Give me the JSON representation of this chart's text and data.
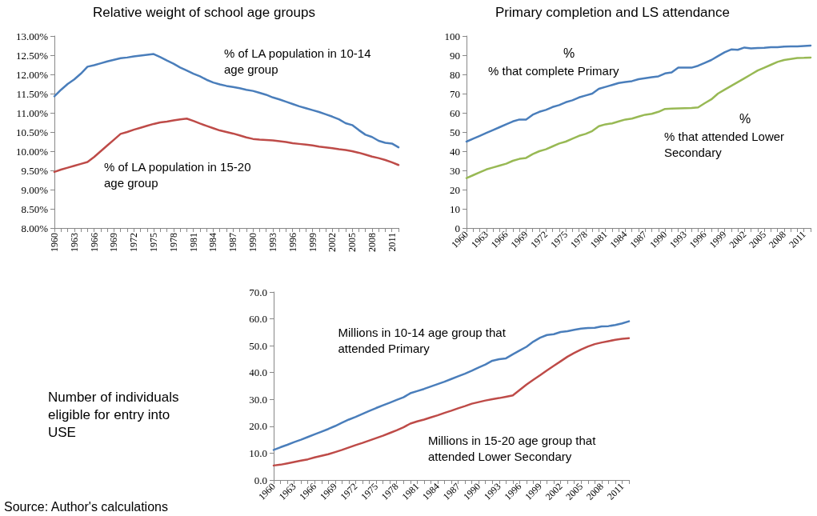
{
  "chart_data": [
    {
      "type": "line",
      "title": "Relative weight of school age groups",
      "marker": "none",
      "line_style": "solid",
      "categories": [
        "1960",
        null,
        null,
        "1963",
        null,
        null,
        "1966",
        null,
        null,
        "1969",
        null,
        null,
        "1972",
        null,
        null,
        "1975",
        null,
        null,
        "1978",
        null,
        null,
        "1981",
        null,
        null,
        "1984",
        null,
        null,
        "1987",
        null,
        null,
        "1990",
        null,
        null,
        "1993",
        null,
        null,
        "1996",
        null,
        null,
        "1999",
        null,
        null,
        "2002",
        null,
        null,
        "2005",
        null,
        null,
        "2008",
        null,
        null,
        "2011",
        null
      ],
      "ylim": [
        8,
        13
      ],
      "yticks": [
        {
          "value": 8,
          "label": "8.00%"
        },
        {
          "value": 8.5,
          "label": "8.50%"
        },
        {
          "value": 9,
          "label": "9.00%"
        },
        {
          "value": 9.5,
          "label": "9.50%"
        },
        {
          "value": 10,
          "label": "10.00%"
        },
        {
          "value": 10.5,
          "label": "10.50%"
        },
        {
          "value": 11,
          "label": "11.00%"
        },
        {
          "value": 11.5,
          "label": "11.50%"
        },
        {
          "value": 12,
          "label": "12.00%"
        },
        {
          "value": 12.5,
          "label": "12.50%"
        },
        {
          "value": 13,
          "label": "13.00%"
        }
      ],
      "series": [
        {
          "name": "% of LA population in 10-14 age group",
          "color": "#4a7ebb",
          "values": [
            11.43,
            11.6,
            11.75,
            11.87,
            12.02,
            12.2,
            12.24,
            12.29,
            12.34,
            12.38,
            12.42,
            12.44,
            12.47,
            12.49,
            12.51,
            12.53,
            12.45,
            12.36,
            12.28,
            12.18,
            12.1,
            12.02,
            11.95,
            11.86,
            11.79,
            11.74,
            11.7,
            11.67,
            11.64,
            11.6,
            11.57,
            11.52,
            11.47,
            11.4,
            11.35,
            11.29,
            11.23,
            11.17,
            11.12,
            11.07,
            11.02,
            10.96,
            10.9,
            10.83,
            10.73,
            10.68,
            10.55,
            10.43,
            10.37,
            10.27,
            10.22,
            10.2,
            10.1
          ]
        },
        {
          "name": "% of LA population in 15-20 age group",
          "color": "#be4b48",
          "values": [
            9.46,
            9.52,
            9.57,
            9.62,
            9.67,
            9.72,
            9.85,
            10.0,
            10.15,
            10.3,
            10.45,
            10.5,
            10.56,
            10.61,
            10.66,
            10.71,
            10.75,
            10.77,
            10.8,
            10.83,
            10.85,
            10.79,
            10.72,
            10.66,
            10.6,
            10.54,
            10.5,
            10.46,
            10.41,
            10.36,
            10.32,
            10.3,
            10.29,
            10.28,
            10.26,
            10.24,
            10.21,
            10.19,
            10.17,
            10.15,
            10.12,
            10.1,
            10.08,
            10.05,
            10.03,
            10.0,
            9.96,
            9.91,
            9.86,
            9.82,
            9.77,
            9.71,
            9.64
          ]
        }
      ]
    },
    {
      "type": "line",
      "title": "Primary completion and LS attendance",
      "marker": "none",
      "line_style": "solid",
      "categories": [
        "1960",
        null,
        null,
        "1963",
        null,
        null,
        "1966",
        null,
        null,
        "1969",
        null,
        null,
        "1972",
        null,
        null,
        "1975",
        null,
        null,
        "1978",
        null,
        null,
        "1981",
        null,
        null,
        "1984",
        null,
        null,
        "1987",
        null,
        null,
        "1990",
        null,
        null,
        "1993",
        null,
        null,
        "1996",
        null,
        null,
        "1999",
        null,
        null,
        "2002",
        null,
        null,
        "2005",
        null,
        null,
        "2008",
        null,
        null,
        "2011",
        null
      ],
      "ylim": [
        0,
        100
      ],
      "yticks": [
        0,
        10,
        20,
        30,
        40,
        50,
        60,
        70,
        80,
        90,
        100
      ],
      "annotations": [
        "%",
        "%"
      ],
      "series": [
        {
          "name": "% that complete Primary",
          "color": "#4a7ebb",
          "values": [
            45,
            46.5,
            48,
            49.5,
            51,
            52.5,
            54,
            55.5,
            56.5,
            56.5,
            59,
            60.5,
            61.5,
            63,
            64,
            65.5,
            66.5,
            68,
            69,
            70,
            72.5,
            73.5,
            74.5,
            75.5,
            76,
            76.5,
            77.5,
            78,
            78.5,
            79,
            80.5,
            81,
            83.5,
            83.5,
            83.5,
            84.5,
            86,
            87.5,
            89.5,
            91.5,
            93,
            92.8,
            94,
            93.5,
            93.8,
            93.9,
            94.2,
            94.2,
            94.5,
            94.6,
            94.6,
            94.8,
            95
          ]
        },
        {
          "name": "% that attended Lower Secondary",
          "color": "#98b954",
          "values": [
            26,
            27.5,
            29,
            30.5,
            31.5,
            32.5,
            33.5,
            35,
            36,
            36.5,
            38.5,
            40,
            41,
            42.5,
            44,
            45,
            46.5,
            48,
            49,
            50.5,
            53,
            54,
            54.5,
            55.5,
            56.5,
            57,
            58,
            59,
            59.5,
            60.5,
            62,
            62.2,
            62.3,
            62.4,
            62.5,
            62.8,
            65,
            67,
            70,
            72,
            74,
            76,
            78,
            80,
            82,
            83.5,
            85,
            86.5,
            87.5,
            88,
            88.5,
            88.6,
            88.8
          ]
        }
      ]
    },
    {
      "type": "line",
      "ylabel": "Number of individuals eligible for entry into USE",
      "marker": "none",
      "line_style": "solid",
      "categories": [
        "1960",
        null,
        null,
        "1963",
        null,
        null,
        "1966",
        null,
        null,
        "1969",
        null,
        null,
        "1972",
        null,
        null,
        "1975",
        null,
        null,
        "1978",
        null,
        null,
        "1981",
        null,
        null,
        "1984",
        null,
        null,
        "1987",
        null,
        null,
        "1990",
        null,
        null,
        "1993",
        null,
        null,
        "1996",
        null,
        null,
        "1999",
        null,
        null,
        "2002",
        null,
        null,
        "2005",
        null,
        null,
        "2008",
        null,
        null,
        "2011",
        null
      ],
      "ylim": [
        0,
        70
      ],
      "yticks": [
        {
          "value": 0,
          "label": "0.0"
        },
        {
          "value": 10,
          "label": "10.0"
        },
        {
          "value": 20,
          "label": "20.0"
        },
        {
          "value": 30,
          "label": "30.0"
        },
        {
          "value": 40,
          "label": "40.0"
        },
        {
          "value": 50,
          "label": "50.0"
        },
        {
          "value": 60,
          "label": "60.0"
        },
        {
          "value": 70,
          "label": "70.0"
        }
      ],
      "annotations": [
        "Source: Author's calculations"
      ],
      "series": [
        {
          "name": "Millions in 10-14 age group that attended Primary",
          "color": "#4a7ebb",
          "values": [
            11.2,
            12.2,
            13.1,
            14.1,
            15.0,
            16.0,
            17.0,
            18.0,
            19.0,
            20.1,
            21.3,
            22.5,
            23.5,
            24.6,
            25.7,
            26.8,
            27.8,
            28.8,
            29.8,
            30.8,
            32.3,
            33.1,
            33.9,
            34.8,
            35.7,
            36.6,
            37.6,
            38.6,
            39.6,
            40.7,
            41.9,
            43.0,
            44.4,
            45.0,
            45.3,
            46.8,
            48.2,
            49.6,
            51.5,
            53.0,
            54.0,
            54.3,
            55.1,
            55.4,
            55.9,
            56.4,
            56.6,
            56.7,
            57.2,
            57.3,
            57.7,
            58.3,
            59.1
          ]
        },
        {
          "name": "Millions in 15-20 age group that attended Lower Secondary",
          "color": "#be4b48",
          "values": [
            5.4,
            5.7,
            6.2,
            6.7,
            7.2,
            7.7,
            8.4,
            9.0,
            9.6,
            10.4,
            11.2,
            12.1,
            13.0,
            13.8,
            14.7,
            15.6,
            16.5,
            17.5,
            18.5,
            19.6,
            21.0,
            21.8,
            22.5,
            23.3,
            24.1,
            25.0,
            25.8,
            26.7,
            27.5,
            28.4,
            29.0,
            29.6,
            30.1,
            30.5,
            31.0,
            31.5,
            33.5,
            35.5,
            37.3,
            39.0,
            40.8,
            42.5,
            44.2,
            45.9,
            47.3,
            48.6,
            49.7,
            50.6,
            51.2,
            51.7,
            52.2,
            52.6,
            52.8
          ]
        }
      ]
    }
  ]
}
